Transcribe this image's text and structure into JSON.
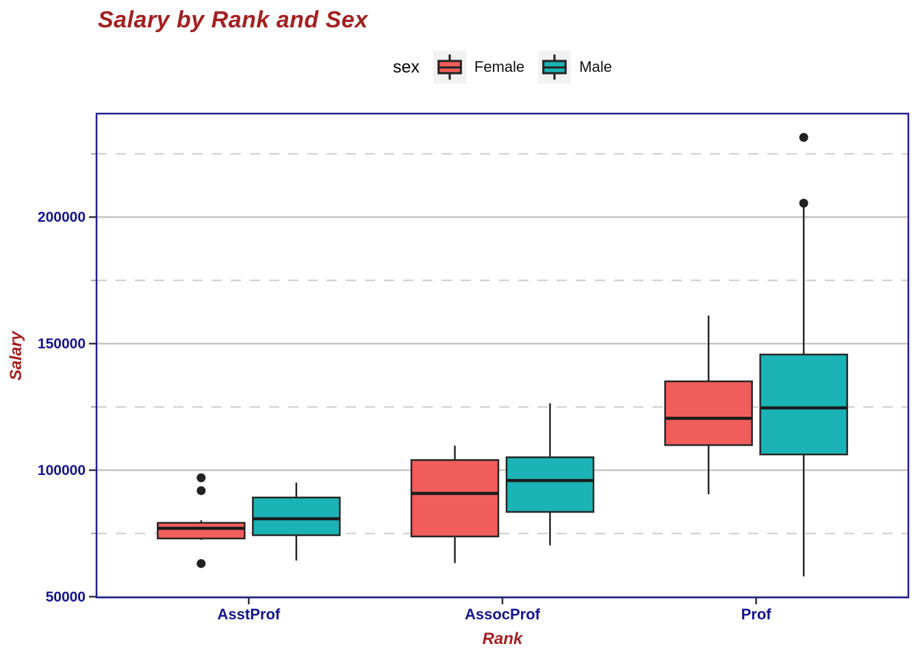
{
  "title": {
    "text": "Salary by Rank and Sex"
  },
  "legend": {
    "title": "sex",
    "key_background": "#F2F2F2",
    "items": [
      {
        "label": "Female",
        "color": "#F15D5B"
      },
      {
        "label": "Male",
        "color": "#1BB3B5"
      }
    ]
  },
  "axis_titles": {
    "x": "Rank",
    "y": "Salary"
  },
  "chart_data": {
    "type": "boxplot",
    "title": "Salary by Rank and Sex",
    "xlabel": "Rank",
    "ylabel": "Salary",
    "legend_position": "top",
    "grid": {
      "major": "solid",
      "minor": "dashed"
    },
    "categories": [
      "AsstProf",
      "AssocProf",
      "Prof"
    ],
    "y_axis": {
      "ticks": [
        {
          "value": 50000,
          "label": "50000"
        },
        {
          "value": 100000,
          "label": "100000"
        },
        {
          "value": 150000,
          "label": "150000"
        },
        {
          "value": 200000,
          "label": "200000"
        }
      ],
      "minor_ticks": [
        75000,
        125000,
        175000,
        225000
      ],
      "ylim": [
        49700,
        240900
      ]
    },
    "series": [
      {
        "name": "Female",
        "color": "#F15D5B",
        "boxes": [
          {
            "category": "AsstProf",
            "whisker_low": 72500,
            "q1": 73000,
            "median": 77000,
            "q3": 79200,
            "whisker_high": 80200,
            "outliers": [
              63100,
              91900,
              97000
            ]
          },
          {
            "category": "AssocProf",
            "whisker_low": 63300,
            "q1": 73800,
            "median": 90800,
            "q3": 104000,
            "whisker_high": 109700,
            "outliers": []
          },
          {
            "category": "Prof",
            "whisker_low": 90500,
            "q1": 109900,
            "median": 120500,
            "q3": 135100,
            "whisker_high": 161100,
            "outliers": []
          }
        ]
      },
      {
        "name": "Male",
        "color": "#1BB3B5",
        "boxes": [
          {
            "category": "AsstProf",
            "whisker_low": 64300,
            "q1": 74300,
            "median": 80800,
            "q3": 89200,
            "whisker_high": 95100,
            "outliers": []
          },
          {
            "category": "AssocProf",
            "whisker_low": 70300,
            "q1": 83500,
            "median": 95900,
            "q3": 105100,
            "whisker_high": 126400,
            "outliers": []
          },
          {
            "category": "Prof",
            "whisker_low": 58000,
            "q1": 106200,
            "median": 124600,
            "q3": 145700,
            "whisker_high": 204500,
            "outliers": [
              205500,
              231500
            ]
          }
        ]
      }
    ],
    "colors": {
      "title": "#A22121",
      "axis_title": "#A22121",
      "tick_label": "#14148E",
      "panel_border": "#1F1F8F",
      "grid_major": "#C4C4C4",
      "grid_minor": "#CBCBCB",
      "tick_major": "#333333",
      "tick_minor": "#9E9E9E",
      "box_stroke": "#262626",
      "median_line": "#1B1B1B",
      "outlier_dot": "#212121",
      "panel_background": "#FFFFFF"
    }
  }
}
